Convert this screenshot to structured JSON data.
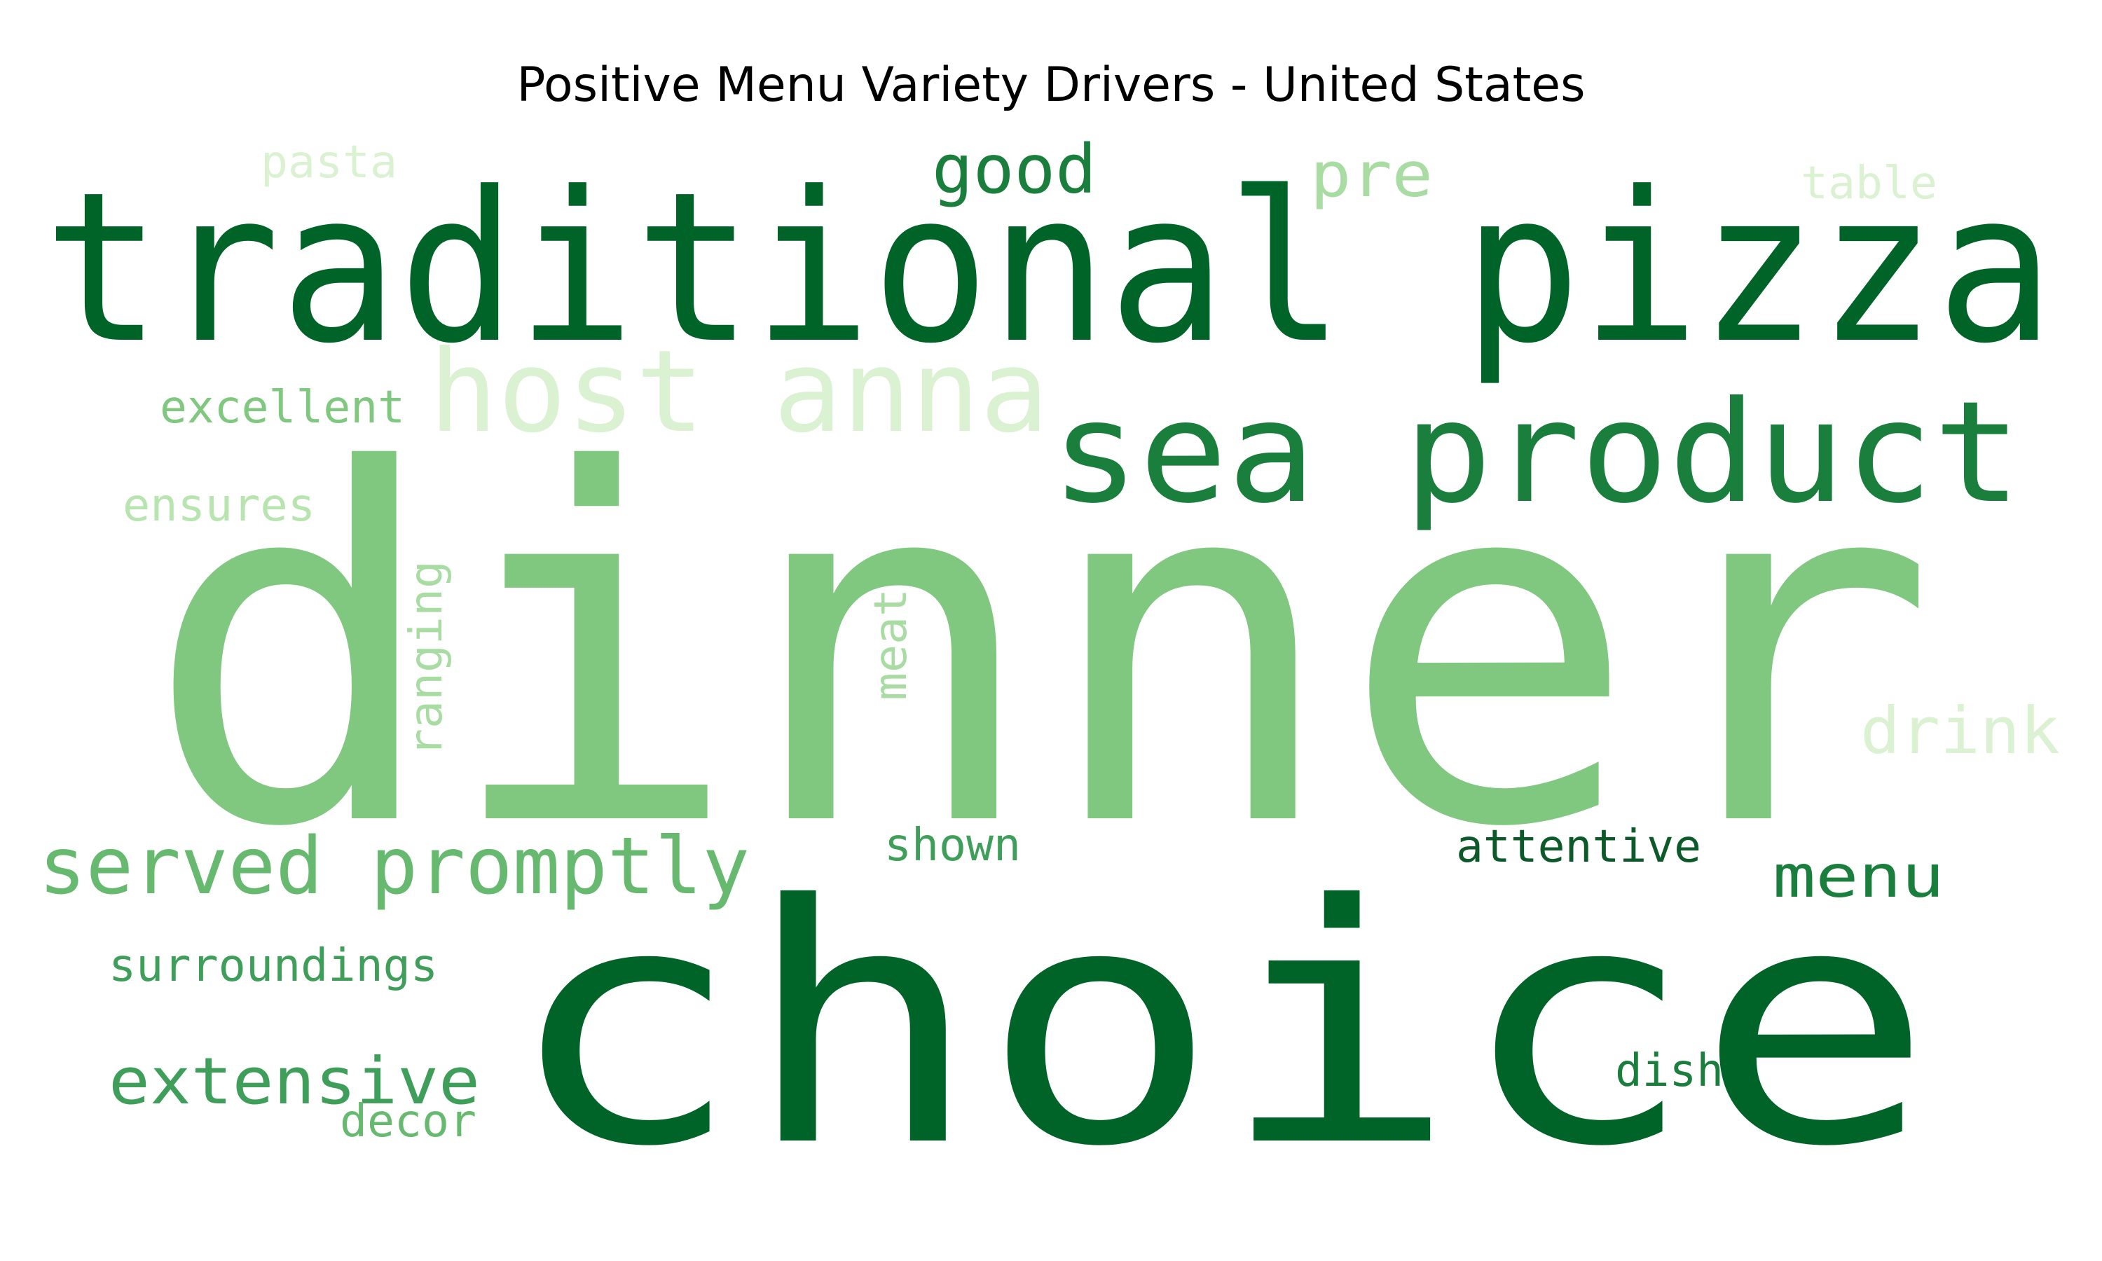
{
  "figure": {
    "title": "Positive Menu Variety Drivers - United States"
  },
  "colors": {
    "dark": "#006428",
    "medium_dark": "#1a7f3c",
    "medium": "#3f9f5a",
    "medium_light": "#66b96e",
    "light": "#80c880",
    "pale": "#a8dca2",
    "very_pale": "#daf2d2"
  },
  "words": [
    {
      "text": "dinner",
      "color": "#80c880"
    },
    {
      "text": "choice",
      "color": "#006428"
    },
    {
      "text": "traditional pizza",
      "color": "#006428"
    },
    {
      "text": "sea product",
      "color": "#1a7f3c"
    },
    {
      "text": "host anna",
      "color": "#daf2d2"
    },
    {
      "text": "served promptly",
      "color": "#66b96e"
    },
    {
      "text": "good",
      "color": "#1a7f3c"
    },
    {
      "text": "pre",
      "color": "#a8dca2"
    },
    {
      "text": "pasta",
      "color": "#daf2d2"
    },
    {
      "text": "table",
      "color": "#daf2d2"
    },
    {
      "text": "excellent",
      "color": "#80c880"
    },
    {
      "text": "ensures",
      "color": "#b8e4b0"
    },
    {
      "text": "ranging",
      "color": "#a8dca2"
    },
    {
      "text": "meat",
      "color": "#a8dca2"
    },
    {
      "text": "drink",
      "color": "#daf2d2"
    },
    {
      "text": "shown",
      "color": "#3f9f5a"
    },
    {
      "text": "attentive",
      "color": "#0c5a2a"
    },
    {
      "text": "menu",
      "color": "#1a7f3c"
    },
    {
      "text": "surroundings",
      "color": "#3f9f5a"
    },
    {
      "text": "extensive",
      "color": "#3f9f5a"
    },
    {
      "text": "decor",
      "color": "#66b96e"
    },
    {
      "text": "dish",
      "color": "#1a7f3c"
    }
  ]
}
